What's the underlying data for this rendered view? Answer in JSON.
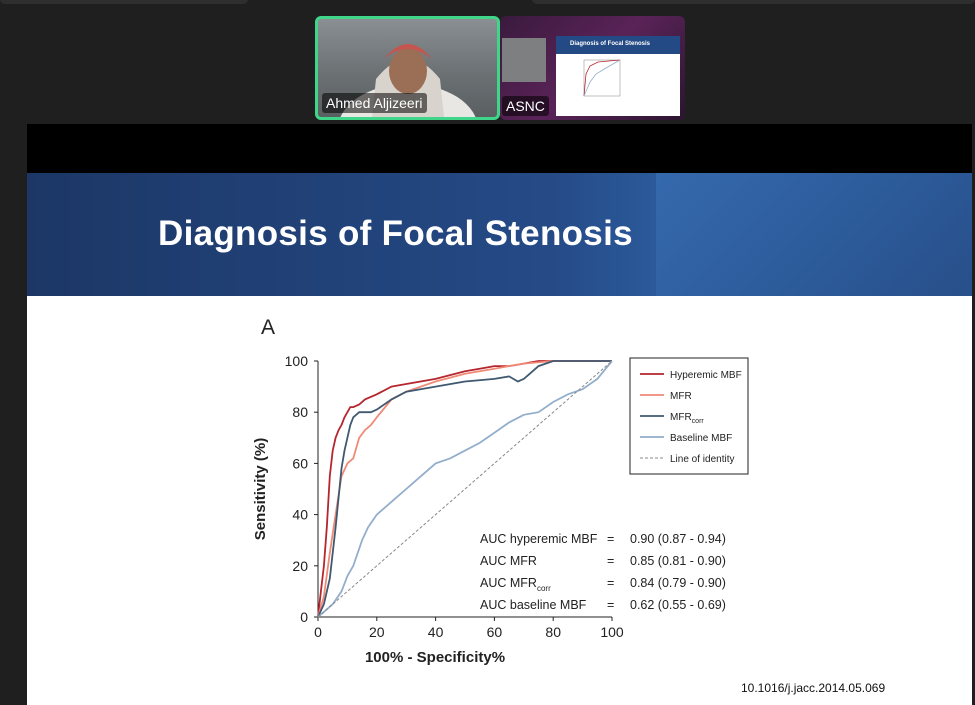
{
  "meeting": {
    "speaker_name": "Ahmed Aljizeeri",
    "shared_screen_name": "ASNC",
    "thumb_slide_title": "Diagnosis of Focal Stenosis"
  },
  "slide": {
    "title": "Diagnosis of Focal Stenosis",
    "panel_letter": "A",
    "doi": "10.1016/j.jacc.2014.05.069"
  },
  "auc": [
    {
      "label_main": "AUC hyperemic MBF",
      "label_sub": "",
      "eq": "=",
      "value": "0.90 (0.87 - 0.94)"
    },
    {
      "label_main": "AUC MFR",
      "label_sub": "",
      "eq": "=",
      "value": "0.85 (0.81 - 0.90)"
    },
    {
      "label_main": "AUC MFR",
      "label_sub": "corr",
      "eq": "=",
      "value": "0.84 (0.79 - 0.90)"
    },
    {
      "label_main": "AUC baseline MBF",
      "label_sub": "",
      "eq": "=",
      "value": "0.62 (0.55 - 0.69)"
    }
  ],
  "chart_data": {
    "type": "line",
    "title": "",
    "xlabel": "100% - Specificity%",
    "ylabel": "Sensitivity (%)",
    "xlim": [
      0,
      100
    ],
    "ylim": [
      0,
      100
    ],
    "xticks": [
      0,
      20,
      40,
      60,
      80,
      100
    ],
    "yticks": [
      0,
      20,
      40,
      60,
      80,
      100
    ],
    "legend_position": "top-right",
    "series": [
      {
        "name": "Hyperemic MBF",
        "sub": "",
        "color": "#b5262f",
        "dash": false,
        "x": [
          0,
          1,
          2,
          3,
          4,
          5,
          6,
          7,
          8,
          9,
          10,
          11,
          12,
          14,
          16,
          20,
          25,
          30,
          40,
          50,
          55,
          60,
          65,
          70,
          75,
          80,
          90,
          100
        ],
        "y": [
          0,
          10,
          20,
          35,
          55,
          65,
          70,
          73,
          75,
          78,
          80,
          82,
          82,
          83,
          85,
          87,
          90,
          91,
          93,
          96,
          97,
          98,
          98,
          99,
          100,
          100,
          100,
          100
        ]
      },
      {
        "name": "MFR",
        "sub": "",
        "color": "#f08a77",
        "dash": false,
        "x": [
          0,
          2,
          4,
          6,
          8,
          10,
          12,
          14,
          16,
          18,
          20,
          25,
          30,
          40,
          50,
          60,
          65,
          70,
          80,
          90,
          100
        ],
        "y": [
          0,
          8,
          25,
          40,
          55,
          60,
          62,
          70,
          73,
          75,
          78,
          85,
          88,
          92,
          95,
          97,
          98,
          99,
          100,
          100,
          100
        ]
      },
      {
        "name": "MFR",
        "sub": "corr",
        "color": "#3f5970",
        "dash": false,
        "x": [
          0,
          2,
          4,
          6,
          8,
          9,
          10,
          11,
          12,
          14,
          16,
          18,
          20,
          25,
          30,
          40,
          50,
          60,
          65,
          68,
          70,
          72,
          75,
          80,
          90,
          100
        ],
        "y": [
          0,
          5,
          15,
          35,
          58,
          65,
          70,
          75,
          78,
          80,
          80,
          80,
          81,
          85,
          88,
          90,
          92,
          93,
          94,
          92,
          93,
          95,
          98,
          100,
          100,
          100
        ]
      },
      {
        "name": "Baseline MBF",
        "sub": "",
        "color": "#93aecc",
        "dash": false,
        "x": [
          0,
          2,
          5,
          8,
          10,
          12,
          15,
          17,
          20,
          25,
          30,
          35,
          40,
          45,
          50,
          55,
          60,
          65,
          70,
          75,
          80,
          85,
          90,
          95,
          100
        ],
        "y": [
          0,
          2,
          5,
          10,
          16,
          20,
          30,
          35,
          40,
          45,
          50,
          55,
          60,
          62,
          65,
          68,
          72,
          76,
          79,
          80,
          84,
          87,
          89,
          93,
          100
        ]
      },
      {
        "name": "Line of identity",
        "sub": "",
        "color": "#888888",
        "dash": true,
        "x": [
          0,
          100
        ],
        "y": [
          0,
          100
        ]
      }
    ]
  }
}
